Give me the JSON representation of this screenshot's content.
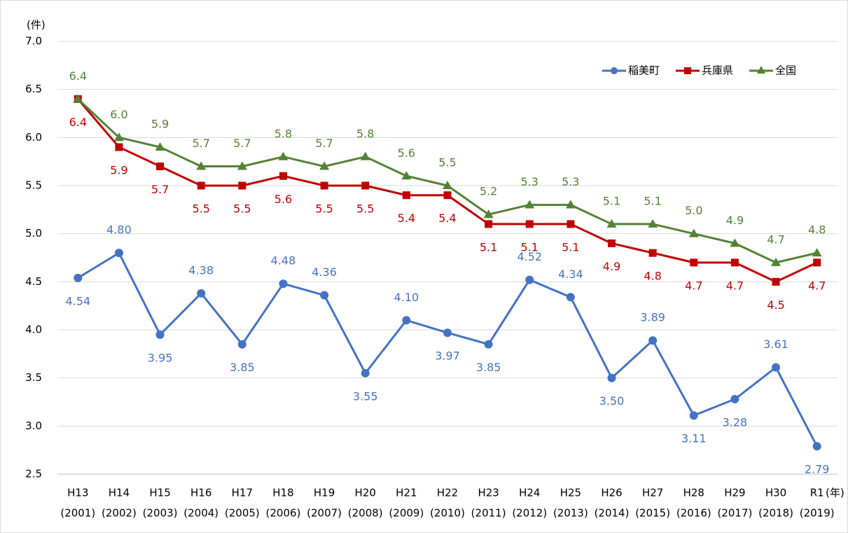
{
  "chart_data": {
    "type": "line",
    "y_unit": "(件)",
    "x_unit": "(年)",
    "categories": [
      [
        "H13",
        "(2001)"
      ],
      [
        "H14",
        "(2002)"
      ],
      [
        "H15",
        "(2003)"
      ],
      [
        "H16",
        "(2004)"
      ],
      [
        "H17",
        "(2005)"
      ],
      [
        "H18",
        "(2006)"
      ],
      [
        "H19",
        "(2007)"
      ],
      [
        "H20",
        "(2008)"
      ],
      [
        "H21",
        "(2009)"
      ],
      [
        "H22",
        "(2010)"
      ],
      [
        "H23",
        "(2011)"
      ],
      [
        "H24",
        "(2012)"
      ],
      [
        "H25",
        "(2013)"
      ],
      [
        "H26",
        "(2014)"
      ],
      [
        "H27",
        "(2015)"
      ],
      [
        "H28",
        "(2016)"
      ],
      [
        "H29",
        "(2017)"
      ],
      [
        "H30",
        "(2018)"
      ],
      [
        "R1",
        "(2019)"
      ]
    ],
    "ylim": [
      2.5,
      7.0
    ],
    "yticks": [
      2.5,
      {
        "value": 3,
        "label": "3.0"
      },
      3.5,
      {
        "value": 4,
        "label": "4.0"
      },
      4.5,
      {
        "value": 5,
        "label": "5.0"
      },
      5.5,
      {
        "value": 6,
        "label": "6.0"
      },
      6.5,
      {
        "value": 7,
        "label": "7.0"
      }
    ],
    "grid": true,
    "legend": "top-right",
    "series": [
      {
        "name": "稲美町",
        "color": "#4472c4",
        "marker": "circle",
        "label_side": "auto",
        "values": [
          4.54,
          4.8,
          3.95,
          4.38,
          3.85,
          4.48,
          4.36,
          3.55,
          4.1,
          3.97,
          3.85,
          4.52,
          4.34,
          3.5,
          3.89,
          3.11,
          3.28,
          3.61,
          2.79
        ],
        "value_labels": [
          "4.54",
          "4.80",
          "3.95",
          "4.38",
          "3.85",
          "4.48",
          "4.36",
          "3.55",
          "4.10",
          "3.97",
          "3.85",
          "4.52",
          "4.34",
          "3.50",
          "3.89",
          "3.11",
          "3.28",
          "3.61",
          "2.79"
        ]
      },
      {
        "name": "兵庫県",
        "color": "#c00000",
        "marker": "square",
        "label_side": "below",
        "values": [
          6.4,
          5.9,
          5.7,
          5.5,
          5.5,
          5.6,
          5.5,
          5.5,
          5.4,
          5.4,
          5.1,
          5.1,
          5.1,
          4.9,
          4.8,
          4.7,
          4.7,
          4.5,
          4.7
        ]
      },
      {
        "name": "全国",
        "color": "#548235",
        "marker": "triangle",
        "label_side": "above",
        "values": [
          6.4,
          6.0,
          5.9,
          5.7,
          5.7,
          5.8,
          5.7,
          5.8,
          5.6,
          5.5,
          5.2,
          5.3,
          5.3,
          5.1,
          5.1,
          5.0,
          4.9,
          4.7,
          4.8
        ],
        "value_labels": [
          "6.4",
          "6.0",
          "5.9",
          "5.7",
          "5.7",
          "5.8",
          "5.7",
          "5.8",
          "5.6",
          "5.5",
          "5.2",
          "5.3",
          "5.3",
          "5.1",
          "5.1",
          "5.0",
          "4.9",
          "4.7",
          "4.8"
        ]
      }
    ]
  }
}
